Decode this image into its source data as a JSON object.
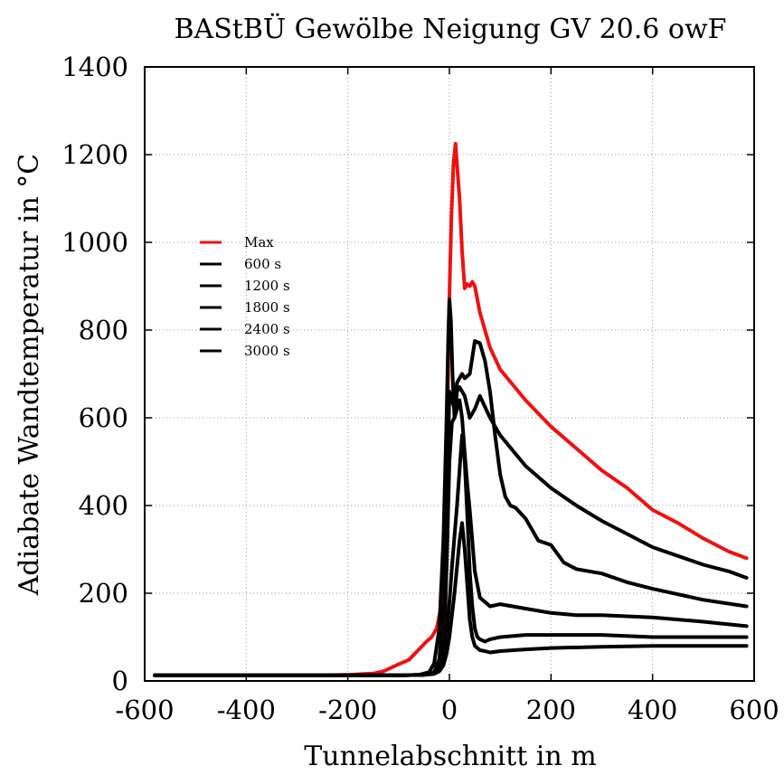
{
  "chart_data": {
    "type": "line",
    "title": "BAStBÜ Gewölbe Neigung GV 20.6 owF",
    "xlabel": "Tunnelabschnitt in m",
    "ylabel": "Adiabate Wandtemperatur in °C",
    "xlim": [
      -600,
      600
    ],
    "ylim": [
      0,
      1400
    ],
    "xticks": [
      -600,
      -400,
      -200,
      0,
      200,
      400,
      600
    ],
    "yticks": [
      0,
      200,
      400,
      600,
      800,
      1000,
      1200,
      1400
    ],
    "grid": true,
    "legend_position": "upper-left",
    "series": [
      {
        "name": "Max",
        "color": "#ee1111",
        "x": [
          -580,
          -400,
          -250,
          -200,
          -150,
          -130,
          -100,
          -80,
          -60,
          -45,
          -35,
          -25,
          -18,
          -12,
          -8,
          -4,
          0,
          4,
          8,
          12,
          20,
          25,
          30,
          35,
          40,
          45,
          50,
          60,
          80,
          100,
          150,
          200,
          250,
          300,
          350,
          400,
          450,
          500,
          550,
          585
        ],
        "y": [
          13,
          13,
          13,
          14,
          17,
          22,
          38,
          48,
          72,
          90,
          100,
          120,
          160,
          250,
          400,
          600,
          880,
          1060,
          1180,
          1225,
          1100,
          980,
          895,
          905,
          900,
          910,
          900,
          840,
          760,
          710,
          640,
          580,
          530,
          480,
          440,
          390,
          360,
          325,
          295,
          280
        ]
      },
      {
        "name": "600 s",
        "color": "#000000",
        "x": [
          -580,
          -200,
          -100,
          -60,
          -40,
          -30,
          -20,
          -12,
          -6,
          -2,
          0,
          3,
          6,
          10,
          15,
          20,
          25,
          30,
          40,
          50,
          60,
          80,
          100,
          150,
          200,
          250,
          300,
          350,
          400,
          450,
          500,
          550,
          585
        ],
        "y": [
          13,
          13,
          13,
          14,
          20,
          40,
          120,
          320,
          580,
          800,
          870,
          820,
          700,
          600,
          660,
          670,
          660,
          650,
          600,
          620,
          650,
          600,
          560,
          490,
          440,
          400,
          365,
          335,
          305,
          285,
          265,
          250,
          235
        ]
      },
      {
        "name": "1200 s",
        "color": "#000000",
        "x": [
          -580,
          -200,
          -100,
          -50,
          -30,
          -20,
          -10,
          -5,
          0,
          5,
          10,
          15,
          20,
          25,
          30,
          40,
          50,
          60,
          70,
          80,
          90,
          100,
          110,
          120,
          130,
          150,
          175,
          200,
          225,
          250,
          300,
          350,
          400,
          500,
          585
        ],
        "y": [
          13,
          13,
          13,
          14,
          20,
          50,
          180,
          400,
          660,
          640,
          620,
          680,
          690,
          700,
          690,
          700,
          775,
          770,
          730,
          660,
          560,
          470,
          420,
          400,
          395,
          370,
          320,
          310,
          270,
          255,
          245,
          225,
          210,
          185,
          170
        ]
      },
      {
        "name": "1800 s",
        "color": "#000000",
        "x": [
          -580,
          -200,
          -100,
          -50,
          -30,
          -20,
          -10,
          -5,
          0,
          5,
          10,
          15,
          20,
          25,
          30,
          35,
          40,
          45,
          50,
          60,
          70,
          80,
          100,
          150,
          200,
          250,
          300,
          400,
          500,
          585
        ],
        "y": [
          13,
          13,
          13,
          14,
          20,
          35,
          100,
          280,
          500,
          590,
          600,
          620,
          640,
          600,
          520,
          450,
          390,
          320,
          250,
          190,
          180,
          170,
          175,
          165,
          155,
          150,
          150,
          145,
          135,
          125
        ]
      },
      {
        "name": "2400 s",
        "color": "#000000",
        "x": [
          -580,
          -200,
          -100,
          -50,
          -30,
          -20,
          -12,
          -6,
          0,
          5,
          10,
          15,
          20,
          25,
          30,
          35,
          40,
          45,
          50,
          55,
          60,
          70,
          80,
          100,
          150,
          200,
          300,
          400,
          500,
          585
        ],
        "y": [
          13,
          13,
          13,
          14,
          18,
          28,
          50,
          100,
          180,
          260,
          330,
          400,
          480,
          560,
          500,
          380,
          250,
          170,
          120,
          100,
          95,
          90,
          95,
          100,
          105,
          105,
          105,
          100,
          100,
          100
        ]
      },
      {
        "name": "3000 s",
        "color": "#000000",
        "x": [
          -580,
          -200,
          -100,
          -50,
          -30,
          -20,
          -12,
          -6,
          0,
          5,
          10,
          15,
          20,
          25,
          30,
          35,
          40,
          45,
          50,
          60,
          70,
          80,
          100,
          150,
          200,
          300,
          400,
          500,
          585
        ],
        "y": [
          13,
          13,
          13,
          14,
          16,
          22,
          35,
          60,
          100,
          150,
          200,
          260,
          320,
          360,
          300,
          220,
          140,
          100,
          80,
          70,
          68,
          65,
          68,
          72,
          75,
          78,
          80,
          80,
          80
        ]
      }
    ]
  }
}
